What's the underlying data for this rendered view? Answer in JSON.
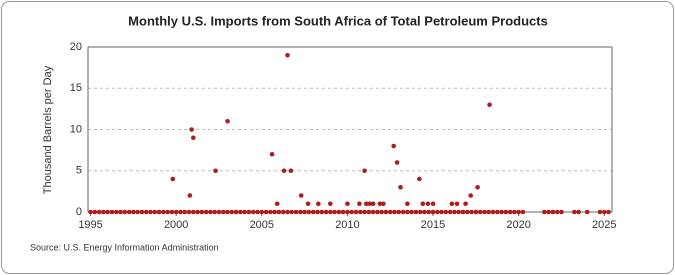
{
  "chart_data": {
    "type": "scatter",
    "title": "Monthly U.S. Imports from South Africa of Total Petroleum Products",
    "y_label": "Thousand Barrels per Day",
    "source": "Source: U.S. Energy Information Administration",
    "color": "#b01c1c",
    "grid": true,
    "xlim": [
      1994.85,
      2025.45
    ],
    "xticks": [
      1995,
      2000,
      2005,
      2010,
      2015,
      2020,
      2025
    ],
    "ylim": [
      0,
      20
    ],
    "yticks": [
      0,
      5,
      10,
      15,
      20
    ],
    "x": [
      1995,
      1995.25,
      1995.5,
      1995.75,
      1996,
      1996.25,
      1996.5,
      1996.75,
      1997,
      1997.25,
      1997.5,
      1997.75,
      1998,
      1998.25,
      1998.5,
      1998.75,
      1999,
      1999.25,
      1999.5,
      1999.75,
      2000,
      2000.25,
      2000.5,
      2000.75,
      2001,
      2001.25,
      2001.5,
      2001.75,
      2002,
      2002.25,
      2002.5,
      2002.75,
      2003,
      2003.25,
      2003.5,
      2003.75,
      2004,
      2004.25,
      2004.5,
      2004.75,
      2005,
      2005.25,
      2005.5,
      2005.75,
      2006,
      2006.25,
      2006.5,
      2006.75,
      2007,
      2007.25,
      2007.5,
      2007.75,
      2008,
      2008.25,
      2008.5,
      2008.75,
      2009,
      2009.25,
      2009.5,
      2009.75,
      2010,
      2010.25,
      2010.5,
      2010.75,
      2011,
      2011.25,
      2011.5,
      2011.75,
      2012,
      2012.25,
      2012.5,
      2012.75,
      2013,
      2013.25,
      2013.5,
      2013.75,
      2014,
      2014.25,
      2014.5,
      2014.75,
      2015,
      2015.25,
      2015.5,
      2015.75,
      2016,
      2016.25,
      2016.5,
      2016.75,
      2017,
      2017.25,
      2017.5,
      2017.75,
      2018,
      2018.25,
      2018.5,
      2018.75,
      2019,
      2019.25,
      2019.5,
      2019.75,
      2020,
      2020.25,
      2021.5,
      2021.75,
      2022,
      2022.25,
      2022.5,
      2023.25,
      2023.5,
      2024,
      2024.75,
      2025,
      2025.25,
      1999.8,
      2000.8,
      2000.9,
      2001.0,
      2002.3,
      2003.0,
      2005.6,
      2005.9,
      2006.3,
      2006.5,
      2006.7,
      2007.3,
      2007.7,
      2008.3,
      2009.0,
      2010.0,
      2010.7,
      2011.0,
      2011.1,
      2011.3,
      2011.5,
      2011.9,
      2012.1,
      2012.7,
      2012.9,
      2013.1,
      2013.5,
      2014.2,
      2014.4,
      2014.7,
      2015.0,
      2016.1,
      2016.4,
      2016.9,
      2017.2,
      2017.6,
      2018.3
    ],
    "values": [
      0,
      0,
      0,
      0,
      0,
      0,
      0,
      0,
      0,
      0,
      0,
      0,
      0,
      0,
      0,
      0,
      0,
      0,
      0,
      0,
      0,
      0,
      0,
      0,
      0,
      0,
      0,
      0,
      0,
      0,
      0,
      0,
      0,
      0,
      0,
      0,
      0,
      0,
      0,
      0,
      0,
      0,
      0,
      0,
      0,
      0,
      0,
      0,
      0,
      0,
      0,
      0,
      0,
      0,
      0,
      0,
      0,
      0,
      0,
      0,
      0,
      0,
      0,
      0,
      0,
      0,
      0,
      0,
      0,
      0,
      0,
      0,
      0,
      0,
      0,
      0,
      0,
      0,
      0,
      0,
      0,
      0,
      0,
      0,
      0,
      0,
      0,
      0,
      0,
      0,
      0,
      0,
      0,
      0,
      0,
      0,
      0,
      0,
      0,
      0,
      0,
      0,
      0,
      0,
      0,
      0,
      0,
      0,
      0,
      0,
      0,
      0,
      0,
      4,
      2,
      10,
      9,
      5,
      11,
      7,
      1,
      5,
      19,
      5,
      2,
      1,
      1,
      1,
      1,
      1,
      5,
      1,
      1,
      1,
      1,
      1,
      8,
      6,
      3,
      1,
      4,
      1,
      1,
      1,
      1,
      1,
      1,
      2,
      3,
      13
    ]
  }
}
